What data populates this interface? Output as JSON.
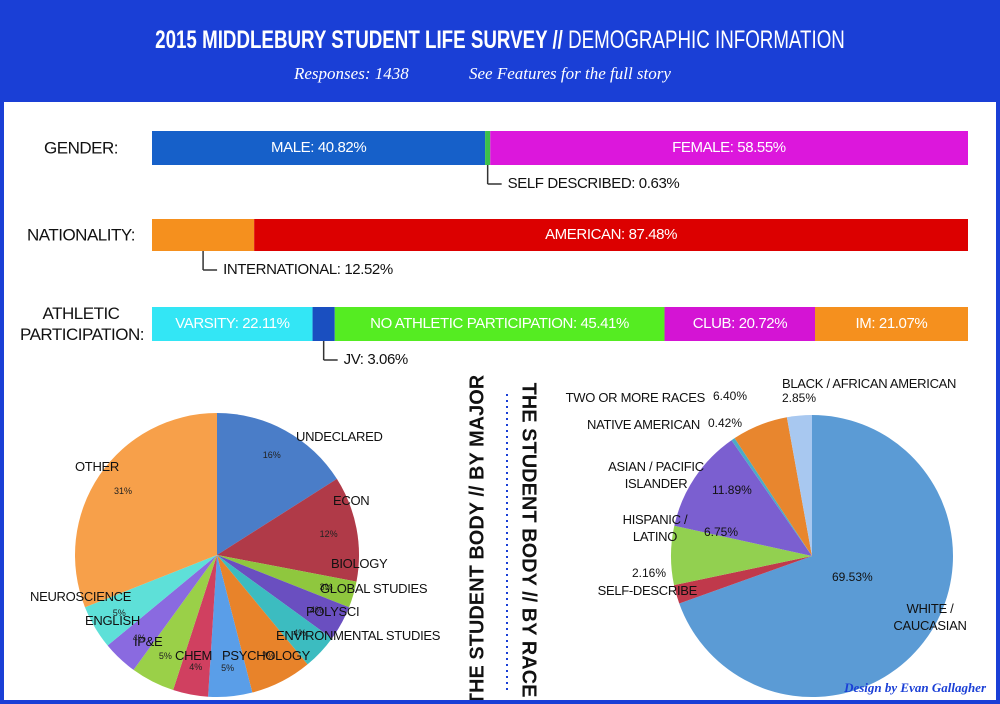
{
  "header": {
    "title_bold": "2015 MIDDLEBURY STUDENT LIFE SURVEY //",
    "title_light": "DEMOGRAPHIC INFORMATION",
    "responses": "Responses: 1438",
    "note": "See Features for the full story"
  },
  "chart_data": [
    {
      "type": "stacked_bar",
      "title": "GENDER:",
      "values": [
        40.82,
        0.63,
        58.55
      ],
      "value_labels": [
        "MALE: 40.82%",
        "SELF DESCRIBED: 0.63%",
        "FEMALE: 58.55%"
      ],
      "colors": [
        "#1660c9",
        "#3cc04a",
        "#dc17dc"
      ]
    },
    {
      "type": "stacked_bar",
      "title": "NATIONALITY:",
      "values": [
        12.52,
        87.48
      ],
      "value_labels": [
        "INTERNATIONAL: 12.52%",
        "AMERICAN: 87.48%"
      ],
      "colors": [
        "#f5901e",
        "#dc0000"
      ]
    },
    {
      "type": "stacked_bar",
      "title": "ATHLETIC PARTICIPATION:",
      "values": [
        22.11,
        3.06,
        45.41,
        20.72,
        21.07
      ],
      "value_labels": [
        "VARSITY: 22.11%",
        "JV: 3.06%",
        "NO ATHLETIC PARTICIPATION: 45.41%",
        "CLUB: 20.72%",
        "IM: 21.07%"
      ],
      "colors": [
        "#33e6f5",
        "#1a4fc0",
        "#55ec22",
        "#d414d4",
        "#f5901e"
      ]
    },
    {
      "type": "pie",
      "title": "THE STUDENT BODY // BY MAJOR",
      "categories": [
        "UNDECLARED",
        "ECON",
        "BIOLOGY",
        "GLOBAL STUDIES",
        "POLYSCI",
        "ENVIRONMENTAL STUDIES",
        "PSYCHOLOGY",
        "CHEM",
        "IP&E",
        "ENGLISH",
        "NEUROSCIENCE",
        "OTHER"
      ],
      "values": [
        16,
        12,
        3,
        4,
        4,
        7,
        5,
        4,
        5,
        4,
        5,
        31
      ],
      "value_labels": [
        "16%",
        "12%",
        "3%",
        "4%",
        "4%",
        "7%",
        "5%",
        "4%",
        "5%",
        "4%",
        "5%",
        "31%"
      ],
      "colors": [
        "#4a7dc8",
        "#b03a48",
        "#8fc73e",
        "#6a4fc0",
        "#3cbcc0",
        "#e8832a",
        "#5a9ee8",
        "#d04060",
        "#9ad048",
        "#8a6ae0",
        "#5ee0d8",
        "#f7a04a"
      ]
    },
    {
      "type": "pie",
      "title": "THE STUDENT BODY // BY RACE",
      "categories": [
        "WHITE / CAUCASIAN",
        "SELF-DESCRIBE",
        "HISPANIC / LATINO",
        "ASIAN / PACIFIC ISLANDER",
        "NATIVE AMERICAN",
        "TWO OR MORE RACES",
        "BLACK / AFRICAN AMERICAN"
      ],
      "values": [
        69.53,
        2.16,
        6.75,
        11.89,
        0.42,
        6.4,
        2.85
      ],
      "value_labels": [
        "69.53%",
        "2.16%",
        "6.75%",
        "11.89%",
        "0.42%",
        "6.40%",
        "2.85%"
      ],
      "colors": [
        "#5b9bd5",
        "#c0394b",
        "#92d050",
        "#7b5fd0",
        "#4bacc6",
        "#e8862e",
        "#a8c8f0"
      ]
    }
  ],
  "credit": "Design by Evan Gallagher"
}
